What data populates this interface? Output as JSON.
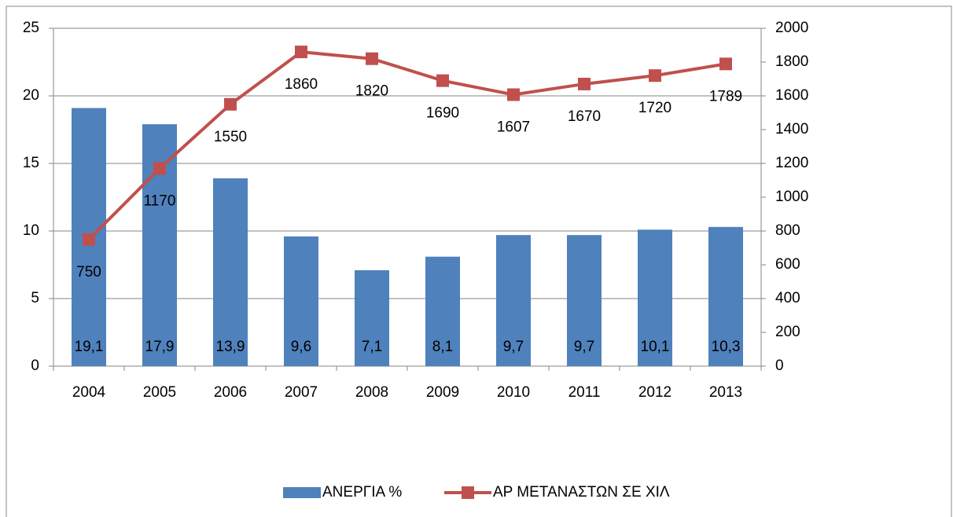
{
  "chart_data": {
    "type": "combo",
    "categories": [
      "2004",
      "2005",
      "2006",
      "2007",
      "2008",
      "2009",
      "2010",
      "2011",
      "2012",
      "2013"
    ],
    "series": [
      {
        "name": "ΑΝΕΡΓΙΑ %",
        "type": "bar",
        "color": "#4f81bd",
        "values": [
          19.1,
          17.9,
          13.9,
          9.6,
          7.1,
          8.1,
          9.7,
          9.7,
          10.1,
          10.3
        ],
        "value_labels": [
          "19,1",
          "17,9",
          "13,9",
          "9,6",
          "7,1",
          "8,1",
          "9,7",
          "9,7",
          "10,1",
          "10,3"
        ]
      },
      {
        "name": "ΑΡ ΜΕΤΑΝΑΣΤΩΝ ΣΕ ΧΙΛ",
        "type": "line",
        "axis": "y2",
        "color": "#c0504d",
        "values": [
          750,
          1170,
          1550,
          1860,
          1820,
          1690,
          1607,
          1670,
          1720,
          1789
        ]
      }
    ],
    "ylim": [
      0,
      25
    ],
    "yticks": [
      0,
      5,
      10,
      15,
      20,
      25
    ],
    "y2lim": [
      0,
      2000
    ],
    "y2ticks": [
      0,
      200,
      400,
      600,
      800,
      1000,
      1200,
      1400,
      1600,
      1800,
      2000
    ],
    "grid": true,
    "legend": "bottom"
  }
}
